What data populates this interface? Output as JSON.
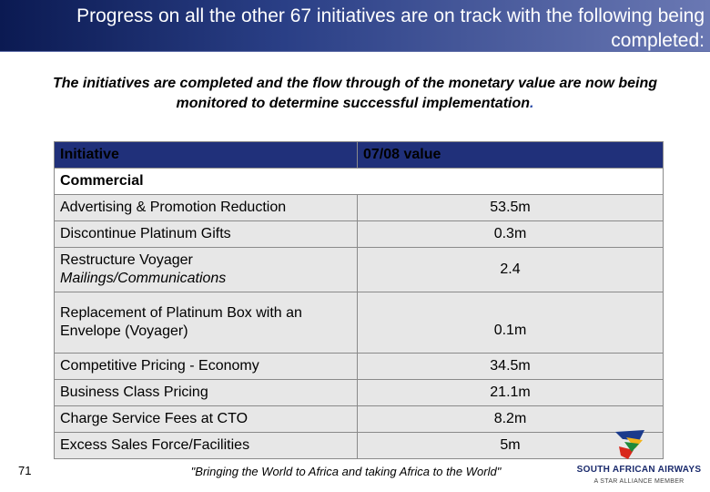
{
  "slide": {
    "title": "Progress on all the other 67 initiatives are on track with the following being completed:",
    "subtitle": "The initiatives are completed and the flow through of the monetary value are now being monitored to determine successful implementation",
    "subtitle_end": ".",
    "page_number": "71",
    "quote": "\"Bringing the World to Africa and taking Africa to the World\""
  },
  "table": {
    "header": {
      "initiative": "Initiative",
      "value": "07/08 value"
    },
    "section": "Commercial",
    "rows": [
      {
        "initiative": "Advertising & Promotion Reduction",
        "value": "53.5m"
      },
      {
        "initiative": "Discontinue Platinum Gifts",
        "value": "0.3m"
      },
      {
        "initiative": "Restructure Voyager",
        "initiative_line2": "Mailings/Communications",
        "value": "2.4"
      },
      {
        "initiative": "Replacement of Platinum Box with an Envelope (Voyager)",
        "value": "0.1m"
      },
      {
        "initiative": "Competitive Pricing - Economy",
        "value": "34.5m"
      },
      {
        "initiative": "Business Class Pricing",
        "value": "21.1m"
      },
      {
        "initiative": "Charge Service Fees at CTO",
        "value": "8.2m"
      },
      {
        "initiative": "Excess Sales Force/Facilities",
        "value": "5m"
      }
    ]
  },
  "logo": {
    "name": "SOUTH AFRICAN AIRWAYS",
    "tagline": "A STAR ALLIANCE MEMBER"
  },
  "colors": {
    "title_bg": "#1a2a6c",
    "header_bg": "#20307a",
    "row_bg": "#e7e7e7"
  }
}
